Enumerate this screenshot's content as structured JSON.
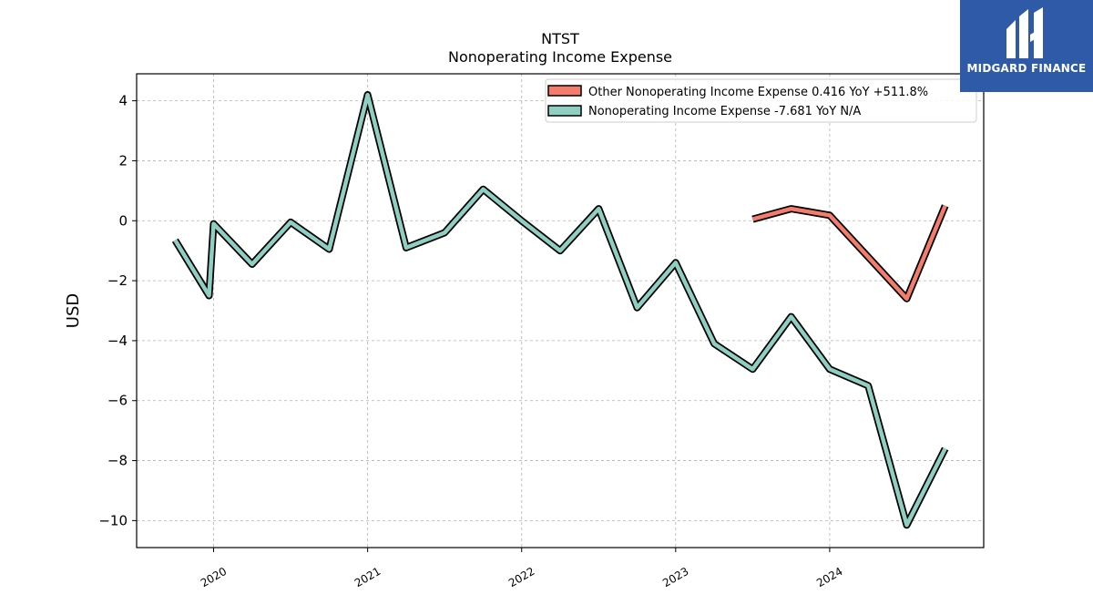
{
  "chart_data": {
    "type": "line",
    "title": "NTST",
    "subtitle": "Nonoperating Income Expense",
    "ylabel": "USD",
    "xlabel": "",
    "ylim": [
      -10.9,
      4.9
    ],
    "xlim": [
      2019.5,
      2025.0
    ],
    "yticks": [
      4,
      2,
      0,
      -2,
      -4,
      -6,
      -8,
      -10
    ],
    "ytick_labels": [
      "4",
      "2",
      "0",
      "−2",
      "−4",
      "−6",
      "−8",
      "−10"
    ],
    "xticks": [
      2020,
      2021,
      2022,
      2023,
      2024
    ],
    "xtick_labels": [
      "2020",
      "2021",
      "2022",
      "2023",
      "2024"
    ],
    "grid": true,
    "legend_position": "top-right",
    "series": [
      {
        "name": "Other Nonoperating Income Expense",
        "legend_label": "Other Nonoperating Income Expense  0.416 YoY +511.8%",
        "color": "#f47c6c",
        "x": [
          2023.5,
          2023.75,
          2024.0,
          2024.5,
          2024.75
        ],
        "y": [
          0.05,
          0.4,
          0.18,
          -2.6,
          0.5
        ]
      },
      {
        "name": "Nonoperating Income Expense",
        "legend_label": "Nonoperating Income Expense  -7.681 YoY N/A",
        "color": "#8ecfc2",
        "x": [
          2019.75,
          2019.97,
          2020.0,
          2020.25,
          2020.5,
          2020.75,
          2021.0,
          2021.25,
          2021.5,
          2021.75,
          2022.0,
          2022.25,
          2022.5,
          2022.75,
          2023.0,
          2023.25,
          2023.5,
          2023.75,
          2024.0,
          2024.25,
          2024.5,
          2024.75
        ],
        "y": [
          -0.65,
          -2.5,
          -0.1,
          -1.45,
          -0.05,
          -0.95,
          4.2,
          -0.9,
          -0.4,
          1.05,
          0.0,
          -1.0,
          0.4,
          -2.9,
          -1.4,
          -4.1,
          -4.95,
          -3.2,
          -4.95,
          -5.5,
          -10.15,
          -7.6
        ]
      }
    ]
  },
  "logo": {
    "text": "MIDGARD FINANCE",
    "color": "#2f5aa8"
  }
}
